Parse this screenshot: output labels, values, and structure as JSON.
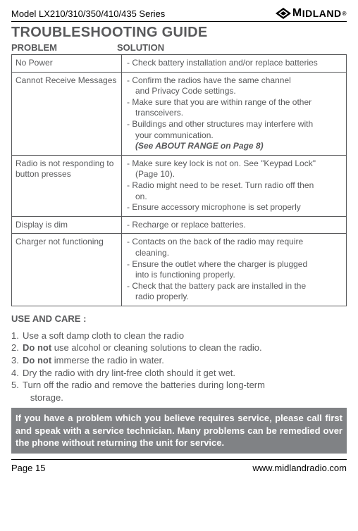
{
  "header": {
    "model": "Model LX210/310/350/410/435 Series",
    "brand_first_char": "M",
    "brand_rest": "IDLAND",
    "registered": "®"
  },
  "title": "TROUBLESHOOTING GUIDE",
  "columns": {
    "problem": "PROBLEM",
    "solution": "SOLUTION"
  },
  "rows": [
    {
      "problem": "No Power",
      "solution": [
        {
          "t": "line",
          "text": "- Check battery installation and/or replace batteries"
        }
      ]
    },
    {
      "problem": "Cannot Receive Messages",
      "solution": [
        {
          "t": "line",
          "text": "- Confirm the radios have the same channel"
        },
        {
          "t": "sub",
          "text": "and Privacy Code settings."
        },
        {
          "t": "line",
          "text": "- Make sure that you are within range of the other"
        },
        {
          "t": "sub",
          "text": "transceivers."
        },
        {
          "t": "line",
          "text": "- Buildings and other structures may interfere with"
        },
        {
          "t": "sub",
          "text": "your communication."
        },
        {
          "t": "emph",
          "text": "(See ABOUT RANGE on Page 8)"
        }
      ]
    },
    {
      "problem": "Radio is not responding to button presses",
      "solution": [
        {
          "t": "line",
          "text": "- Make sure key lock is not on. See \"Keypad Lock\""
        },
        {
          "t": "sub",
          "text": "(Page 10)."
        },
        {
          "t": "line",
          "text": "- Radio might need to be reset.  Turn radio off then"
        },
        {
          "t": "sub",
          "text": "on."
        },
        {
          "t": "line",
          "text": "- Ensure accessory microphone is set properly"
        }
      ]
    },
    {
      "problem": "Display is dim",
      "solution": [
        {
          "t": "line",
          "text": "- Recharge or replace batteries."
        }
      ]
    },
    {
      "problem": "Charger not functioning",
      "solution": [
        {
          "t": "line",
          "text": "- Contacts on the back of the radio may require"
        },
        {
          "t": "sub",
          "text": "cleaning."
        },
        {
          "t": "line",
          "text": "- Ensure the outlet where the charger is plugged"
        },
        {
          "t": "sub",
          "text": "into is functioning properly."
        },
        {
          "t": "line",
          "text": "- Check that the battery pack are installed in the"
        },
        {
          "t": "sub",
          "text": "radio properly."
        }
      ]
    }
  ],
  "use_care_heading": "USE AND CARE :",
  "use_care": [
    {
      "n": "1.",
      "text": "Use a soft damp cloth to clean the radio"
    },
    {
      "n": "2.",
      "text": "<b>Do not</b> use alcohol or cleaning solutions to clean the radio."
    },
    {
      "n": "3.",
      "text": "<b>Do not</b> immerse the radio in water."
    },
    {
      "n": "4.",
      "text": "Dry the radio with dry lint-free cloth should it get wet."
    },
    {
      "n": "5.",
      "text": "Turn off the radio and remove the batteries during long-term"
    },
    {
      "n": "",
      "text": "&nbsp;&nbsp;&nbsp;storage."
    }
  ],
  "notice": "If you have a problem which you believe requires service, please call first and speak with a service technician.  Many problems can be remedied over the phone without returning the unit for service.",
  "footer": {
    "page": "Page 15",
    "url": "www.midlandradio.com"
  }
}
